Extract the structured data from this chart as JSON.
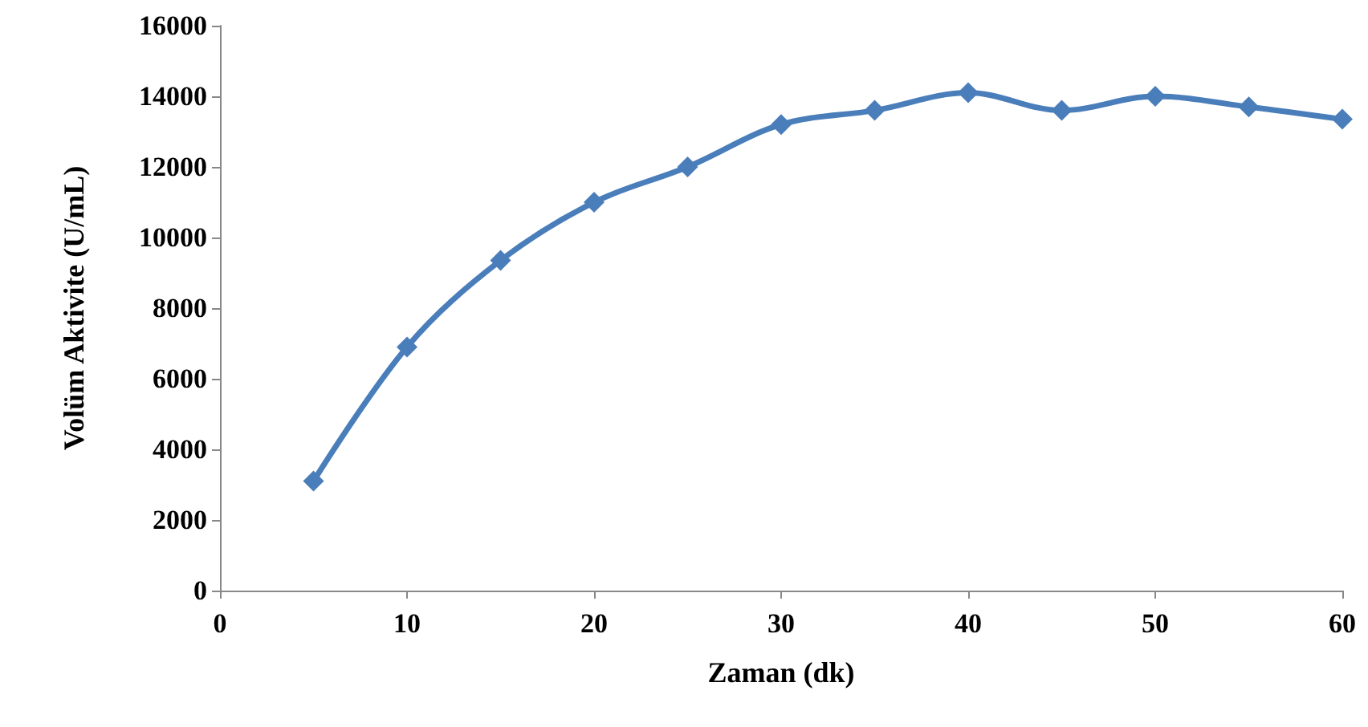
{
  "chart_data": {
    "type": "line",
    "xlabel": "Zaman (dk)",
    "ylabel": "Volüm Aktivite (U/mL)",
    "x": [
      5,
      10,
      15,
      20,
      25,
      30,
      35,
      40,
      45,
      50,
      55,
      60
    ],
    "series": [
      {
        "color": "#4a7ebb",
        "values": [
          3100,
          6900,
          9350,
          11000,
          12000,
          13200,
          13600,
          14100,
          13600,
          14000,
          13700,
          13350
        ]
      }
    ],
    "xlim": [
      0,
      60
    ],
    "xticks": [
      0,
      10,
      20,
      30,
      40,
      50,
      60
    ],
    "ylim": [
      0,
      16000
    ],
    "yticks": [
      0,
      2000,
      4000,
      6000,
      8000,
      10000,
      12000,
      14000,
      16000
    ],
    "marker": "diamond",
    "line_style": "solid"
  }
}
